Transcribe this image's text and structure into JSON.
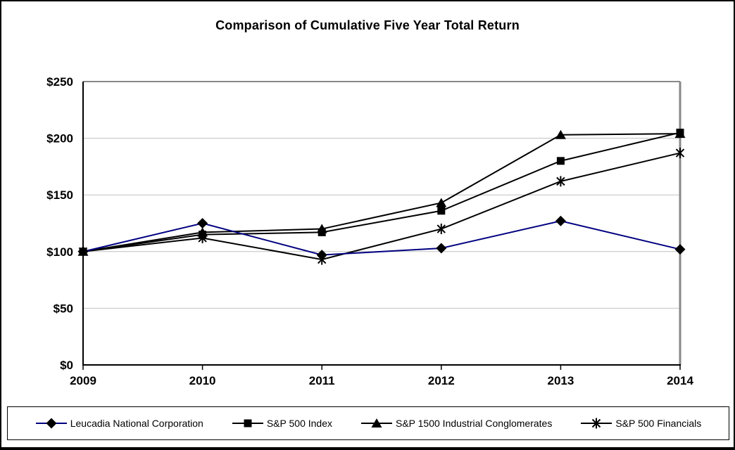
{
  "chart_data": {
    "type": "line",
    "title": "Comparison of Cumulative Five Year Total Return",
    "categories": [
      "2009",
      "2010",
      "2011",
      "2012",
      "2013",
      "2014"
    ],
    "series": [
      {
        "name": "Leucadia National Corporation",
        "marker": "diamond",
        "line_color": "#000080",
        "marker_color": "#000000",
        "values": [
          100,
          125,
          97,
          103,
          127,
          102
        ]
      },
      {
        "name": "S&P 500 Index",
        "marker": "square",
        "line_color": "#000000",
        "marker_color": "#000000",
        "values": [
          100,
          115,
          117,
          136,
          180,
          205
        ]
      },
      {
        "name": "S&P 1500 Industrial Conglomerates",
        "marker": "triangle",
        "line_color": "#000000",
        "marker_color": "#000000",
        "values": [
          100,
          117,
          120,
          143,
          203,
          204
        ]
      },
      {
        "name": "S&P 500 Financials",
        "marker": "asterisk",
        "line_color": "#000000",
        "marker_color": "#000000",
        "values": [
          100,
          112,
          93,
          120,
          162,
          187
        ]
      }
    ],
    "draw_order": [
      2,
      1,
      3,
      0
    ],
    "ylim": [
      0,
      250
    ],
    "y_tick_step": 50,
    "y_tick_labels": [
      "$0",
      "$50",
      "$100",
      "$150",
      "$200",
      "$250"
    ],
    "x_tick_labels": [
      "2009",
      "2010",
      "2011",
      "2012",
      "2013",
      "2014"
    ],
    "grid": "horizontal",
    "legend_position": "bottom",
    "colors": {
      "gridline": "#c0c0c0",
      "plot_border": "#888888",
      "axis": "#000000",
      "background": "#ffffff"
    }
  }
}
